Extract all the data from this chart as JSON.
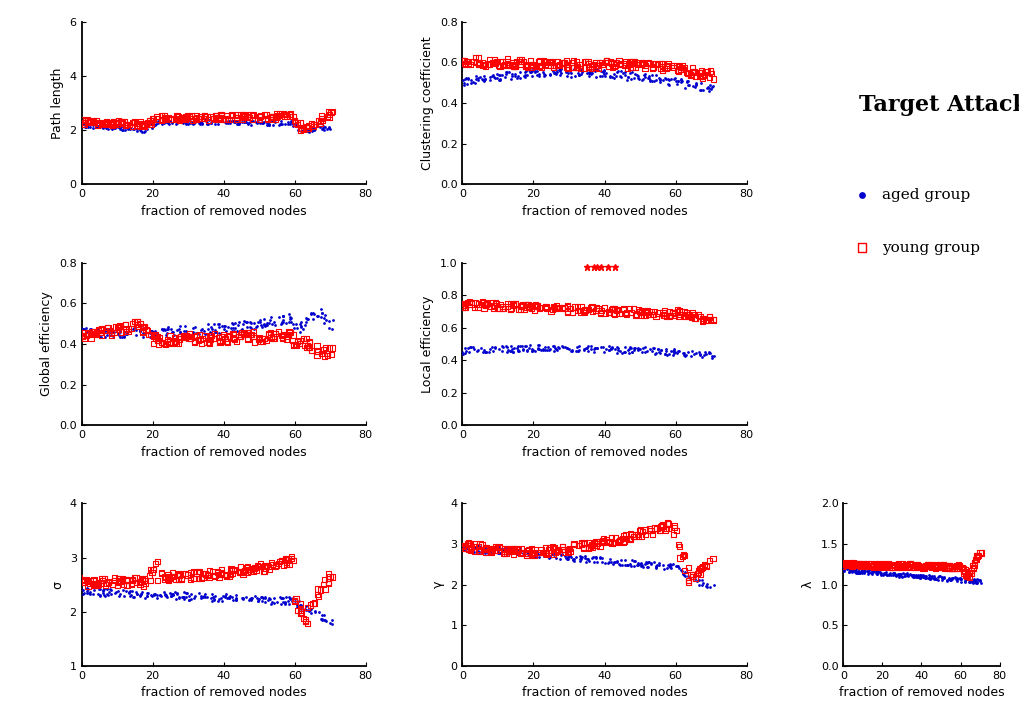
{
  "title": "Target Attack",
  "legend_aged": "aged group",
  "legend_young": "young group",
  "aged_color": "#0000CD",
  "young_color": "#FF0000",
  "xlabel": "fraction of removed nodes",
  "subplots": [
    {
      "ylabel": "Path length",
      "ylim": [
        0,
        6
      ],
      "yticks": [
        0,
        2,
        4,
        6
      ],
      "xlim": [
        0,
        80
      ],
      "xticks": [
        0,
        20,
        40,
        60,
        80
      ],
      "sig_x": [],
      "sig_y": 5.82
    },
    {
      "ylabel": "Clustering coefficient",
      "ylim": [
        0.0,
        0.8
      ],
      "yticks": [
        0.0,
        0.2,
        0.4,
        0.6,
        0.8
      ],
      "xlim": [
        0,
        80
      ],
      "xticks": [
        0,
        20,
        40,
        60,
        80
      ],
      "sig_x": [],
      "sig_y": 0.776
    },
    {
      "ylabel": "Global efficiency",
      "ylim": [
        0.0,
        0.8
      ],
      "yticks": [
        0.0,
        0.2,
        0.4,
        0.6,
        0.8
      ],
      "xlim": [
        0,
        80
      ],
      "xticks": [
        0,
        20,
        40,
        60,
        80
      ],
      "sig_x": [],
      "sig_y": 0.776
    },
    {
      "ylabel": "Local efficiency",
      "ylim": [
        0.0,
        1.0
      ],
      "yticks": [
        0.0,
        0.2,
        0.4,
        0.6,
        0.8,
        1.0
      ],
      "xlim": [
        0,
        80
      ],
      "xticks": [
        0,
        20,
        40,
        60,
        80
      ],
      "sig_x": [
        35,
        37,
        38,
        39,
        41,
        43
      ],
      "sig_y": 0.97
    },
    {
      "ylabel": "σ",
      "ylim": [
        1,
        4
      ],
      "yticks": [
        1,
        2,
        3,
        4
      ],
      "xlim": [
        0,
        80
      ],
      "xticks": [
        0,
        20,
        40,
        60,
        80
      ],
      "sig_x": [],
      "sig_y": 3.88
    },
    {
      "ylabel": "γ",
      "ylim": [
        0,
        4
      ],
      "yticks": [
        0,
        1,
        2,
        3,
        4
      ],
      "xlim": [
        0,
        80
      ],
      "xticks": [
        0,
        20,
        40,
        60,
        80
      ],
      "sig_x": [],
      "sig_y": 3.88
    },
    {
      "ylabel": "λ",
      "ylim": [
        0.0,
        2.0
      ],
      "yticks": [
        0.0,
        0.5,
        1.0,
        1.5,
        2.0
      ],
      "xlim": [
        0,
        80
      ],
      "xticks": [
        0,
        20,
        40,
        60,
        80
      ],
      "sig_x": [],
      "sig_y": 1.94
    }
  ]
}
